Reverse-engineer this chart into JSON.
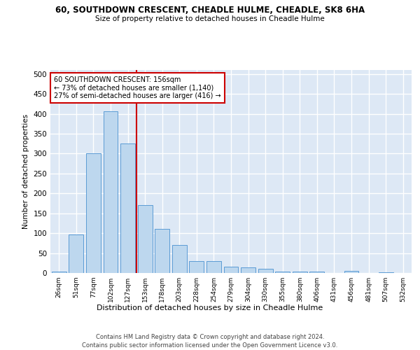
{
  "title": "60, SOUTHDOWN CRESCENT, CHEADLE HULME, CHEADLE, SK8 6HA",
  "subtitle": "Size of property relative to detached houses in Cheadle Hulme",
  "xlabel": "Distribution of detached houses by size in Cheadle Hulme",
  "ylabel": "Number of detached properties",
  "categories": [
    "26sqm",
    "51sqm",
    "77sqm",
    "102sqm",
    "127sqm",
    "153sqm",
    "178sqm",
    "203sqm",
    "228sqm",
    "254sqm",
    "279sqm",
    "304sqm",
    "330sqm",
    "355sqm",
    "380sqm",
    "406sqm",
    "431sqm",
    "456sqm",
    "481sqm",
    "507sqm",
    "532sqm"
  ],
  "values": [
    3,
    97,
    300,
    406,
    325,
    170,
    110,
    70,
    30,
    30,
    16,
    14,
    10,
    4,
    3,
    4,
    0,
    5,
    0,
    2,
    0
  ],
  "bar_color": "#bdd7ee",
  "bar_edge_color": "#5b9bd5",
  "property_line_x": 4.5,
  "property_line_color": "#cc0000",
  "annotation_text": "60 SOUTHDOWN CRESCENT: 156sqm\n← 73% of detached houses are smaller (1,140)\n27% of semi-detached houses are larger (416) →",
  "annotation_box_color": "#cc0000",
  "background_color": "#dde8f5",
  "grid_color": "#ffffff",
  "ylim": [
    0,
    510
  ],
  "yticks": [
    0,
    50,
    100,
    150,
    200,
    250,
    300,
    350,
    400,
    450,
    500
  ],
  "footer_line1": "Contains HM Land Registry data © Crown copyright and database right 2024.",
  "footer_line2": "Contains public sector information licensed under the Open Government Licence v3.0."
}
